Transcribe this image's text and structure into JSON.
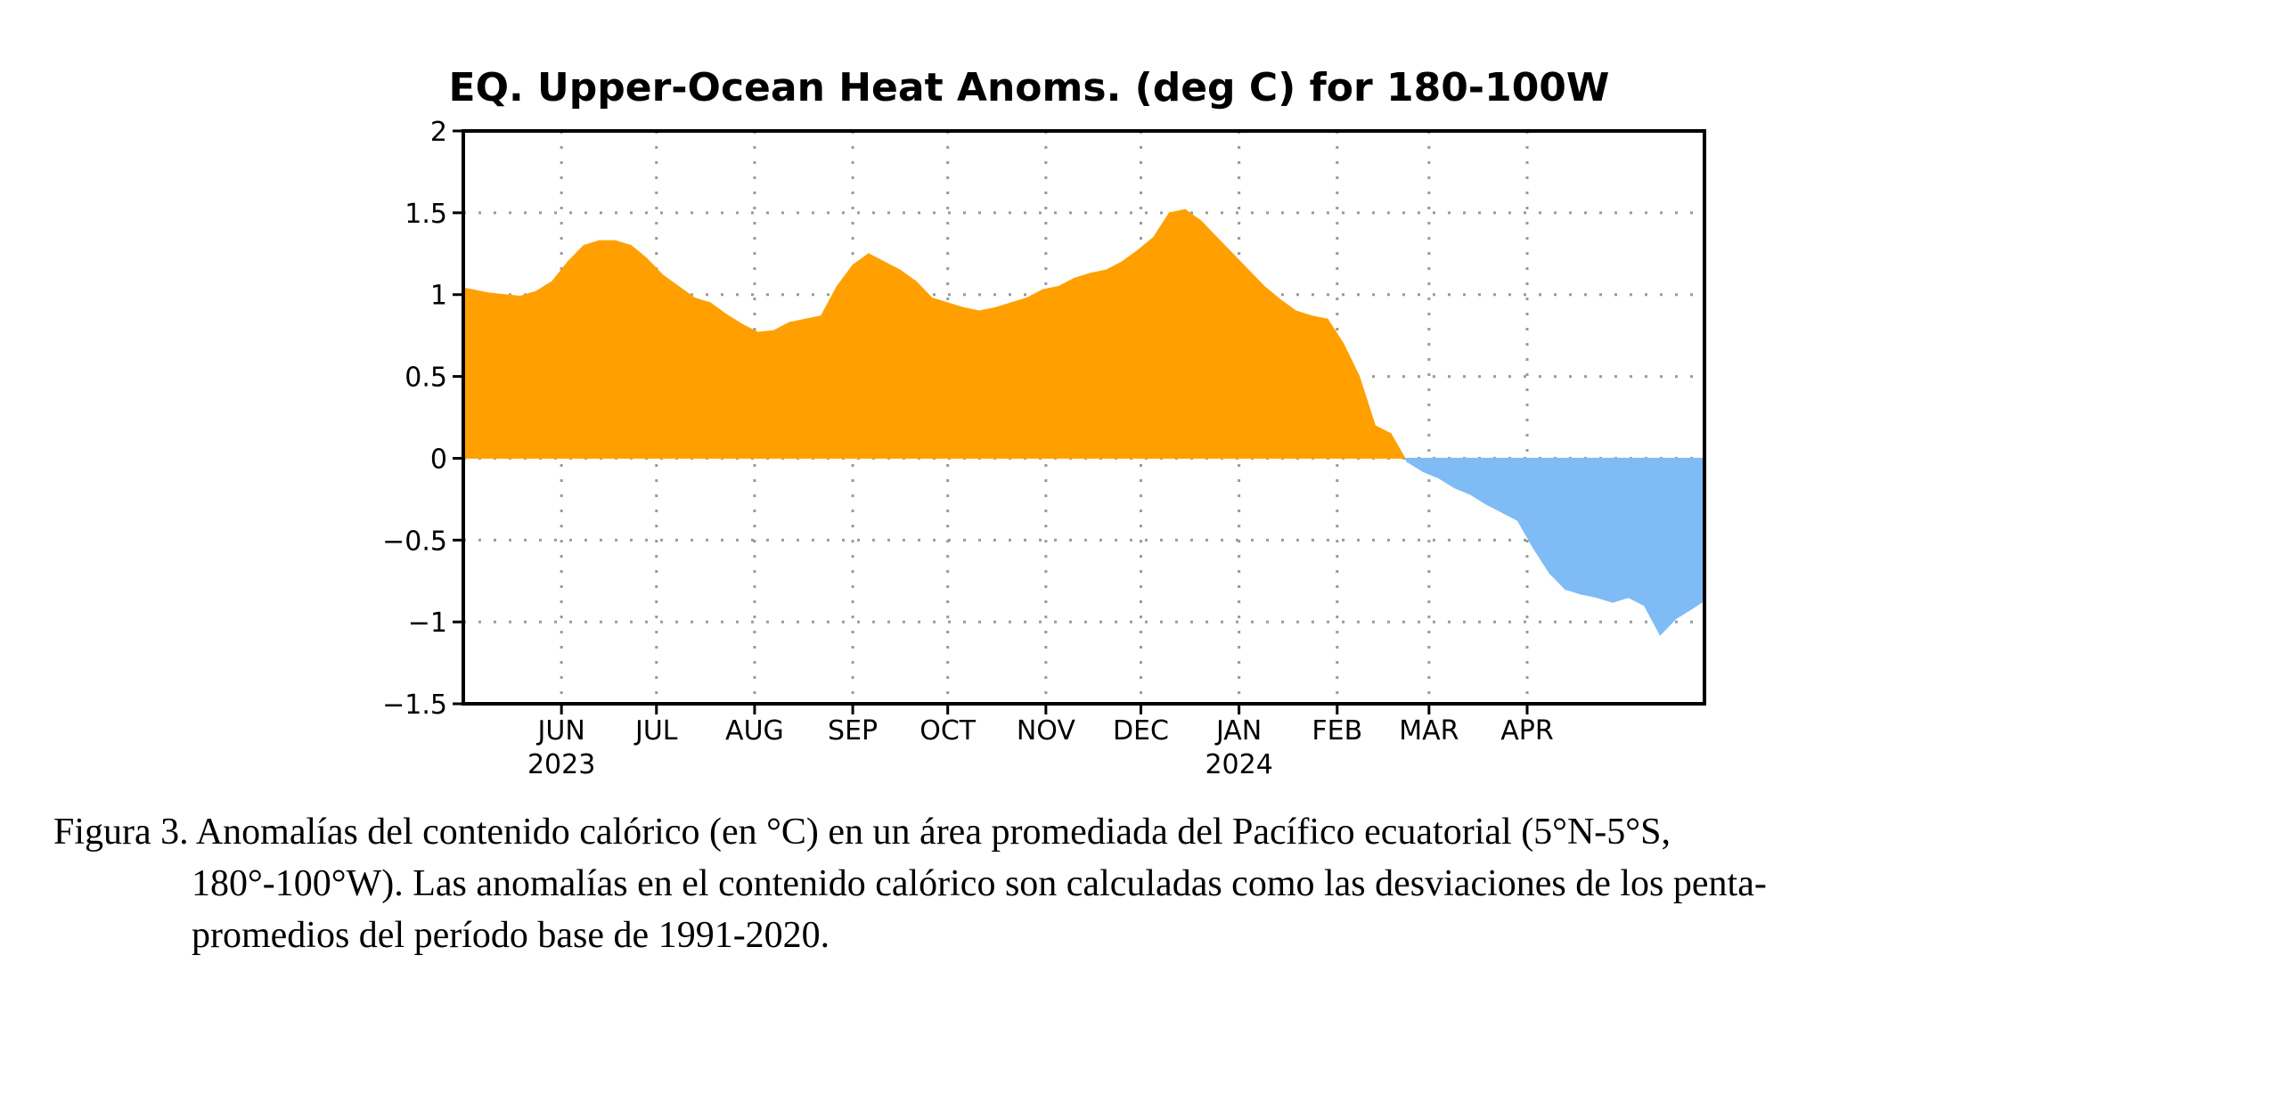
{
  "chart_data": {
    "type": "area",
    "title": "EQ. Upper-Ocean Heat Anoms. (deg C) for 180-100W",
    "xlabel": "",
    "ylabel": "",
    "ylim": [
      -1.5,
      2.0
    ],
    "yticks": [
      "2",
      "1.5",
      "1",
      "0.5",
      "0",
      "-0.5",
      "-1",
      "-1.5"
    ],
    "ytick_values": [
      2,
      1.5,
      1,
      0.5,
      0,
      -0.5,
      -1,
      -1.5
    ],
    "xlim": [
      "2023-05-01",
      "2024-05-27"
    ],
    "xticks": [
      {
        "date": "2023-06-01",
        "label": "JUN",
        "year": "2023"
      },
      {
        "date": "2023-07-01",
        "label": "JUL",
        "year": ""
      },
      {
        "date": "2023-08-01",
        "label": "AUG",
        "year": ""
      },
      {
        "date": "2023-09-01",
        "label": "SEP",
        "year": ""
      },
      {
        "date": "2023-10-01",
        "label": "OCT",
        "year": ""
      },
      {
        "date": "2023-11-01",
        "label": "NOV",
        "year": ""
      },
      {
        "date": "2023-12-01",
        "label": "DEC",
        "year": ""
      },
      {
        "date": "2024-01-01",
        "label": "JAN",
        "year": "2024"
      },
      {
        "date": "2024-02-01",
        "label": "FEB",
        "year": ""
      },
      {
        "date": "2024-03-01",
        "label": "MAR",
        "year": ""
      },
      {
        "date": "2024-04-01",
        "label": "APR",
        "year": ""
      }
    ],
    "grid": true,
    "colors": {
      "positive": "#ffa000",
      "negative": "#7fbbf5"
    },
    "series": [
      {
        "x": [
          "2023-05-01",
          "2023-05-04",
          "2023-05-09",
          "2023-05-14",
          "2023-05-19",
          "2023-05-24",
          "2023-05-29",
          "2023-06-03",
          "2023-06-08",
          "2023-06-13",
          "2023-06-18",
          "2023-06-23",
          "2023-06-28",
          "2023-07-03",
          "2023-07-08",
          "2023-07-13",
          "2023-07-18",
          "2023-07-23",
          "2023-07-28",
          "2023-08-02",
          "2023-08-07",
          "2023-08-12",
          "2023-08-17",
          "2023-08-22",
          "2023-08-27",
          "2023-09-01",
          "2023-09-06",
          "2023-09-11",
          "2023-09-16",
          "2023-09-21",
          "2023-09-26",
          "2023-10-01",
          "2023-10-06",
          "2023-10-11",
          "2023-10-16",
          "2023-10-21",
          "2023-10-26",
          "2023-10-31",
          "2023-11-05",
          "2023-11-10",
          "2023-11-15",
          "2023-11-20",
          "2023-11-25",
          "2023-11-30",
          "2023-12-05",
          "2023-12-10",
          "2023-12-15",
          "2023-12-20",
          "2023-12-25",
          "2023-12-30",
          "2024-01-04",
          "2024-01-09",
          "2024-01-14",
          "2024-01-19",
          "2024-01-24",
          "2024-01-29",
          "2024-02-03",
          "2024-02-08",
          "2024-02-13",
          "2024-02-18",
          "2024-02-23",
          "2024-02-28",
          "2024-03-04",
          "2024-03-09",
          "2024-03-14",
          "2024-03-19",
          "2024-03-24",
          "2024-03-29",
          "2024-04-03",
          "2024-04-08",
          "2024-04-13",
          "2024-04-18",
          "2024-04-23",
          "2024-04-28",
          "2024-05-03",
          "2024-05-08",
          "2024-05-13",
          "2024-05-18",
          "2024-05-23",
          "2024-05-27"
        ],
        "y": [
          1.04,
          1.03,
          1.01,
          1.0,
          0.99,
          1.02,
          1.08,
          1.2,
          1.3,
          1.33,
          1.33,
          1.3,
          1.22,
          1.12,
          1.05,
          0.98,
          0.95,
          0.88,
          0.82,
          0.77,
          0.78,
          0.83,
          0.85,
          0.87,
          1.05,
          1.18,
          1.25,
          1.2,
          1.15,
          1.08,
          0.98,
          0.95,
          0.92,
          0.9,
          0.92,
          0.95,
          0.98,
          1.03,
          1.05,
          1.1,
          1.13,
          1.15,
          1.2,
          1.27,
          1.35,
          1.5,
          1.52,
          1.45,
          1.35,
          1.25,
          1.15,
          1.05,
          0.97,
          0.9,
          0.87,
          0.85,
          0.7,
          0.5,
          0.2,
          0.15,
          -0.02,
          -0.08,
          -0.12,
          -0.18,
          -0.22,
          -0.28,
          -0.33,
          -0.38,
          -0.55,
          -0.7,
          -0.8,
          -0.83,
          -0.85,
          -0.88,
          -0.85,
          -0.9,
          -1.08,
          -0.98,
          -0.92,
          -0.87
        ]
      }
    ]
  },
  "caption": {
    "line1": "Figura 3. Anomalías del contenido calórico (en °C) en un área promediada del Pacífico ecuatorial (5°N-5°S,",
    "line2": "180°-100°W). Las anomalías en el contenido calórico son calculadas como las desviaciones de los penta-",
    "line3": "promedios del período base de 1991-2020."
  }
}
